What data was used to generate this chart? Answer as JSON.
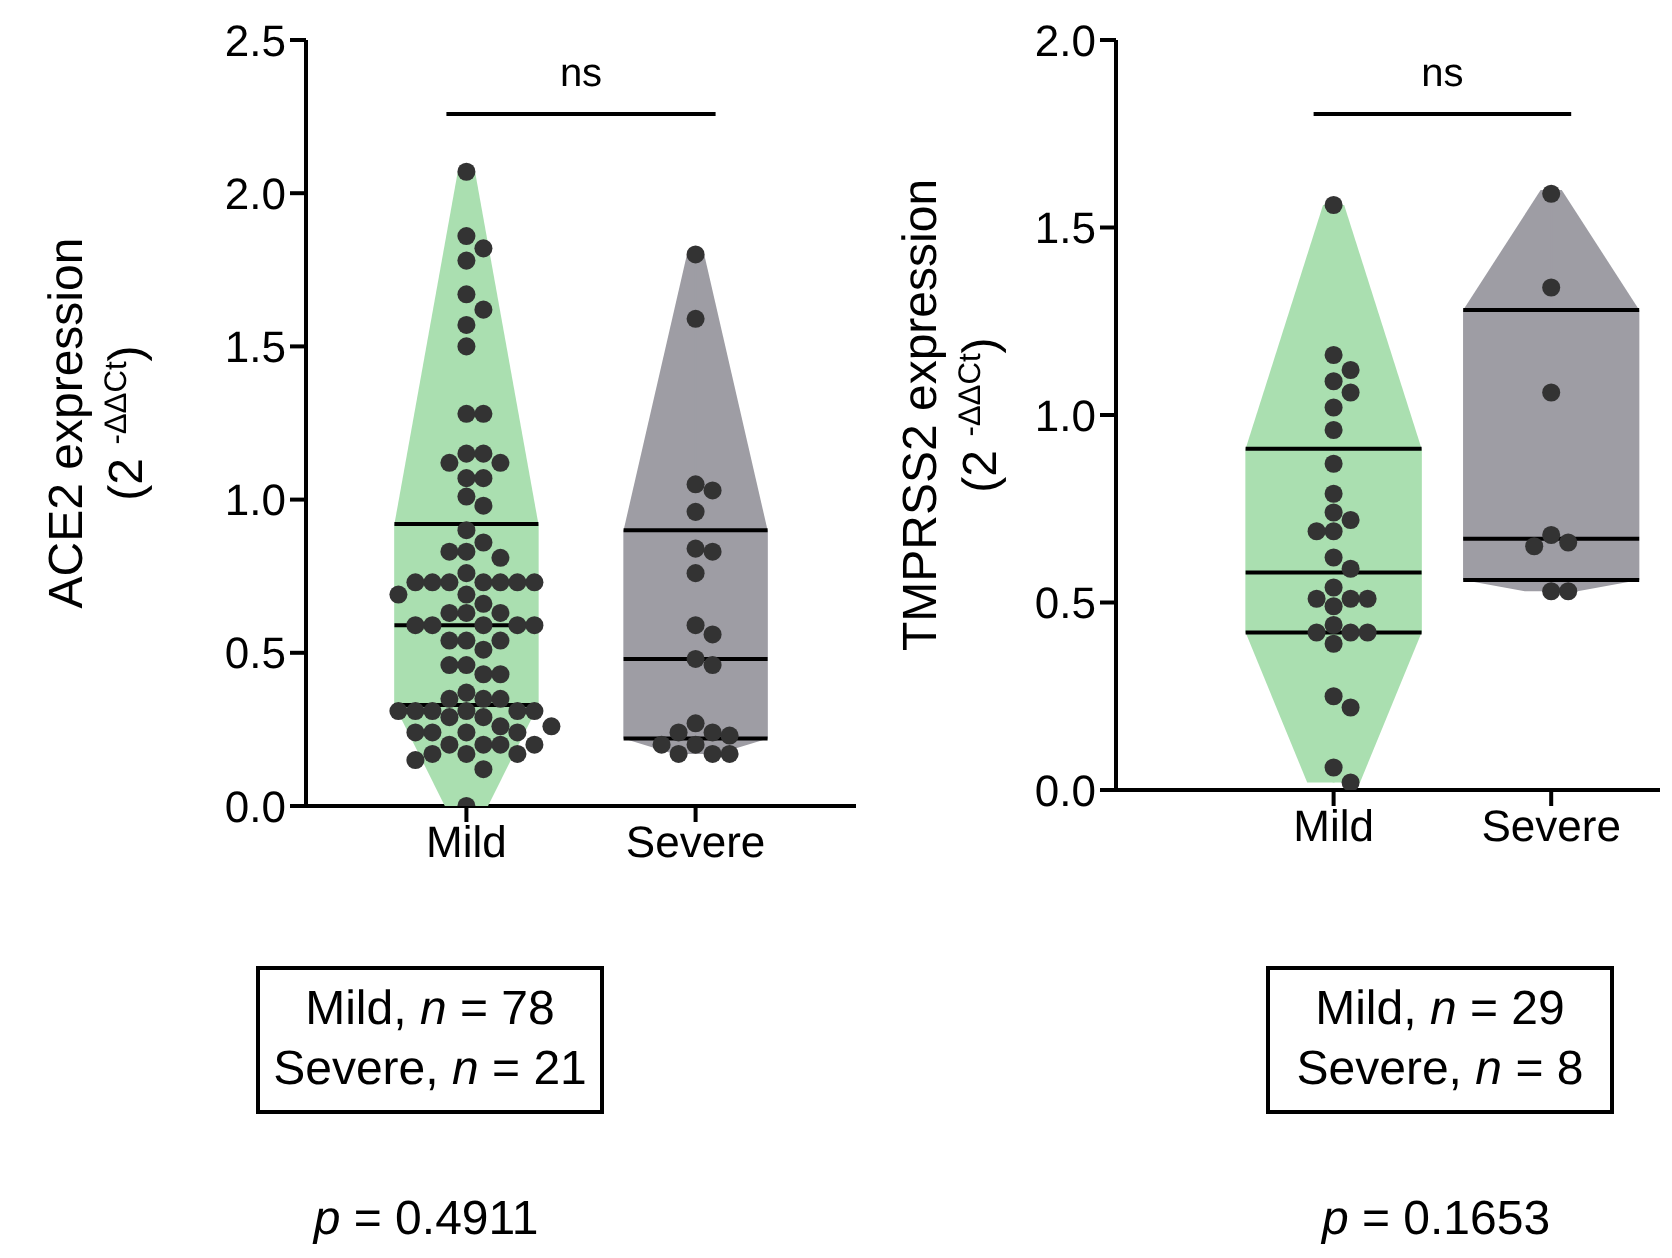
{
  "chart_data": [
    {
      "type": "box",
      "ylabel": "ACE2 expression\n(2 $^{-ΔΔCt}$)",
      "categories": [
        "Mild",
        "Severe"
      ],
      "colors": [
        "#aadfb0",
        "#9e9da4"
      ],
      "boxes": [
        {
          "low": 0.0,
          "q1": 0.33,
          "median": 0.59,
          "q3": 0.92,
          "high": 2.07
        },
        {
          "low": 0.17,
          "q1": 0.22,
          "median": 0.48,
          "q3": 0.9,
          "high": 1.8
        }
      ],
      "series": [
        {
          "type": "scatter",
          "color": "#333333",
          "x": [
            "Mild",
            "Mild",
            "Mild",
            "Mild",
            "Mild",
            "Mild",
            "Mild",
            "Mild",
            "Mild",
            "Mild",
            "Mild",
            "Mild",
            "Mild",
            "Mild",
            "Mild",
            "Mild",
            "Mild",
            "Mild",
            "Mild",
            "Mild",
            "Mild",
            "Mild",
            "Mild",
            "Mild",
            "Mild",
            "Mild",
            "Mild",
            "Mild",
            "Mild",
            "Mild",
            "Mild",
            "Mild",
            "Mild",
            "Mild",
            "Mild",
            "Mild",
            "Mild",
            "Mild",
            "Mild",
            "Mild",
            "Mild",
            "Mild",
            "Mild",
            "Mild",
            "Mild",
            "Mild",
            "Mild",
            "Mild",
            "Mild",
            "Mild",
            "Mild",
            "Mild",
            "Mild",
            "Mild",
            "Mild",
            "Mild",
            "Mild",
            "Mild",
            "Mild",
            "Mild",
            "Mild",
            "Mild",
            "Mild",
            "Mild",
            "Mild",
            "Mild",
            "Mild",
            "Mild",
            "Mild",
            "Mild",
            "Mild",
            "Mild",
            "Mild",
            "Mild",
            "Mild",
            "Mild",
            "Mild",
            "Mild"
          ],
          "values": [
            2.07,
            1.86,
            1.82,
            1.78,
            1.67,
            1.62,
            1.57,
            1.5,
            1.28,
            1.28,
            1.15,
            1.15,
            1.12,
            1.12,
            1.07,
            1.07,
            1.01,
            0.98,
            0.9,
            0.86,
            0.83,
            0.83,
            0.81,
            0.76,
            0.73,
            0.73,
            0.73,
            0.73,
            0.73,
            0.73,
            0.73,
            0.69,
            0.69,
            0.66,
            0.63,
            0.63,
            0.63,
            0.59,
            0.59,
            0.59,
            0.59,
            0.59,
            0.54,
            0.54,
            0.54,
            0.51,
            0.46,
            0.46,
            0.43,
            0.43,
            0.37,
            0.35,
            0.35,
            0.35,
            0.31,
            0.31,
            0.31,
            0.31,
            0.31,
            0.31,
            0.29,
            0.29,
            0.26,
            0.26,
            0.24,
            0.24,
            0.24,
            0.24,
            0.2,
            0.2,
            0.2,
            0.2,
            0.17,
            0.17,
            0.17,
            0.15,
            0.12,
            0.0
          ]
        },
        {
          "type": "scatter",
          "color": "#333333",
          "x": [
            "Severe",
            "Severe",
            "Severe",
            "Severe",
            "Severe",
            "Severe",
            "Severe",
            "Severe",
            "Severe",
            "Severe",
            "Severe",
            "Severe",
            "Severe",
            "Severe",
            "Severe",
            "Severe",
            "Severe",
            "Severe",
            "Severe",
            "Severe",
            "Severe"
          ],
          "values": [
            1.8,
            1.59,
            1.05,
            1.03,
            0.96,
            0.84,
            0.83,
            0.76,
            0.59,
            0.56,
            0.48,
            0.46,
            0.27,
            0.24,
            0.24,
            0.23,
            0.2,
            0.2,
            0.17,
            0.17,
            0.17
          ]
        }
      ],
      "ylim": [
        0,
        2.5
      ],
      "yticks": [
        {
          "value": 0,
          "label": "0.0"
        },
        {
          "value": 0.5,
          "label": "0.5"
        },
        {
          "value": 1,
          "label": "1.0"
        },
        {
          "value": 1.5,
          "label": "1.5"
        },
        {
          "value": 2,
          "label": "2.0"
        },
        {
          "value": 2.5,
          "label": "2.5"
        }
      ],
      "annotations": [
        "ns",
        "Mild, n = 78",
        "Severe, n = 21",
        "p = 0.4911"
      ]
    },
    {
      "type": "box",
      "ylabel": "TMPRSS2 expression\n(2 $^{-ΔΔCt}$)",
      "categories": [
        "Mild",
        "Severe"
      ],
      "colors": [
        "#aadfb0",
        "#9e9da4"
      ],
      "boxes": [
        {
          "low": 0.02,
          "q1": 0.42,
          "median": 0.58,
          "q3": 0.91,
          "high": 1.56
        },
        {
          "low": 0.53,
          "q1": 0.56,
          "median": 0.67,
          "q3": 1.28,
          "high": 1.6
        }
      ],
      "series": [
        {
          "type": "scatter",
          "color": "#333333",
          "x": [
            "Mild",
            "Mild",
            "Mild",
            "Mild",
            "Mild",
            "Mild",
            "Mild",
            "Mild",
            "Mild",
            "Mild",
            "Mild",
            "Mild",
            "Mild",
            "Mild",
            "Mild",
            "Mild",
            "Mild",
            "Mild",
            "Mild",
            "Mild",
            "Mild",
            "Mild",
            "Mild",
            "Mild",
            "Mild",
            "Mild",
            "Mild",
            "Mild",
            "Mild"
          ],
          "values": [
            1.56,
            1.16,
            1.12,
            1.09,
            1.06,
            1.02,
            0.96,
            0.87,
            0.79,
            0.74,
            0.72,
            0.69,
            0.62,
            0.59,
            0.54,
            0.51,
            0.51,
            0.51,
            0.49,
            0.44,
            0.42,
            0.42,
            0.42,
            0.39,
            0.25,
            0.22,
            0.06,
            0.02,
            0.69
          ]
        },
        {
          "type": "scatter",
          "color": "#333333",
          "x": [
            "Severe",
            "Severe",
            "Severe",
            "Severe",
            "Severe",
            "Severe",
            "Severe",
            "Severe"
          ],
          "values": [
            1.59,
            1.34,
            1.06,
            0.68,
            0.66,
            0.65,
            0.53,
            0.53
          ]
        }
      ],
      "ylim": [
        0,
        2
      ],
      "yticks": [
        {
          "value": 0,
          "label": "0.0"
        },
        {
          "value": 0.5,
          "label": "0.5"
        },
        {
          "value": 1,
          "label": "1.0"
        },
        {
          "value": 1.5,
          "label": "1.5"
        },
        {
          "value": 2,
          "label": "2.0"
        }
      ],
      "annotations": [
        "ns",
        "Mild, n = 29",
        "Severe, n = 8",
        "p = 0.1653"
      ]
    }
  ]
}
